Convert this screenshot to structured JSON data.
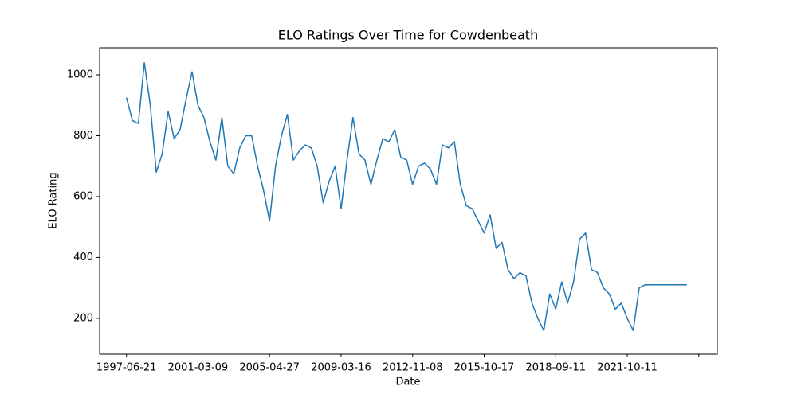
{
  "chart_data": {
    "type": "line",
    "title": "ELO Ratings Over Time for Cowdenbeath",
    "xlabel": "Date",
    "ylabel": "ELO Rating",
    "categories": [
      "1997-06-21",
      null,
      null,
      null,
      null,
      null,
      null,
      null,
      null,
      null,
      null,
      null,
      "2001-03-09",
      null,
      null,
      null,
      null,
      null,
      null,
      null,
      null,
      null,
      null,
      null,
      "2005-04-27",
      null,
      null,
      null,
      null,
      null,
      null,
      null,
      null,
      null,
      null,
      null,
      "2009-03-16",
      null,
      null,
      null,
      null,
      null,
      null,
      null,
      null,
      null,
      null,
      null,
      "2012-11-08",
      null,
      null,
      null,
      null,
      null,
      null,
      null,
      null,
      null,
      null,
      null,
      "2015-10-17",
      null,
      null,
      null,
      null,
      null,
      null,
      null,
      null,
      null,
      null,
      null,
      "2018-09-11",
      null,
      null,
      null,
      null,
      null,
      null,
      null,
      null,
      null,
      null,
      null,
      "2021-10-11",
      null,
      null,
      null,
      null,
      null,
      null,
      null,
      null,
      null,
      null,
      null,
      null
    ],
    "series": [
      {
        "name": "Cowdenbeath",
        "color": "#1f77b4",
        "values": [
          925,
          850,
          840,
          1040,
          900,
          680,
          740,
          880,
          790,
          820,
          920,
          1010,
          900,
          860,
          780,
          720,
          860,
          700,
          675,
          760,
          800,
          800,
          700,
          620,
          520,
          700,
          800,
          870,
          720,
          750,
          770,
          760,
          700,
          580,
          650,
          700,
          560,
          720,
          860,
          740,
          720,
          640,
          720,
          790,
          780,
          820,
          730,
          720,
          640,
          700,
          710,
          690,
          640,
          770,
          760,
          780,
          640,
          570,
          560,
          520,
          480,
          540,
          430,
          450,
          360,
          330,
          350,
          340,
          250,
          200,
          160,
          280,
          230,
          320,
          250,
          320,
          460,
          480,
          360,
          350,
          300,
          280,
          230,
          250,
          200,
          160,
          300,
          310,
          310,
          310,
          310,
          310,
          310,
          310,
          310,
          null,
          null
        ]
      }
    ],
    "xticks": [
      0,
      12,
      24,
      36,
      48,
      60,
      72,
      84,
      96
    ],
    "xlim": [
      -4.5,
      99.1
    ],
    "ylim": [
      82,
      1089
    ],
    "yticks": [
      200,
      400,
      600,
      800,
      1000
    ]
  }
}
